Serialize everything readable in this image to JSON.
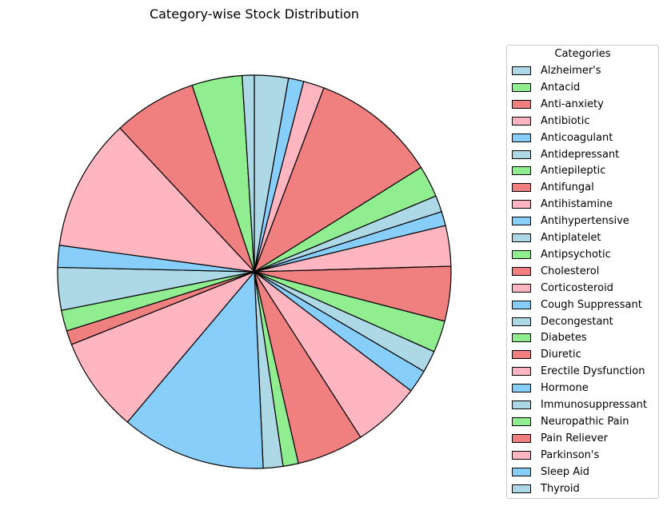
{
  "chart_data": {
    "type": "pie",
    "title": "Category-wise Stock Distribution",
    "legend_title": "Categories",
    "legend_position": "right",
    "categories": [
      "Alzheimer's",
      "Antacid",
      "Anti-anxiety",
      "Antibiotic",
      "Anticoagulant",
      "Antidepressant",
      "Antiepileptic",
      "Antifungal",
      "Antihistamine",
      "Antihypertensive",
      "Antiplatelet",
      "Antipsychotic",
      "Cholesterol",
      "Corticosteroid",
      "Cough Suppressant",
      "Decongestant",
      "Diabetes",
      "Diuretic",
      "Erectile Dysfunction",
      "Hormone",
      "Immunosuppressant",
      "Neuropathic Pain",
      "Pain Reliever",
      "Parkinson's",
      "Sleep Aid",
      "Thyroid"
    ],
    "colors": [
      "#add8e6",
      "#90ee90",
      "#f08080",
      "#ffb6c1",
      "#87cefa"
    ],
    "start_angle": 90,
    "direction": "clockwise",
    "slices": [
      {
        "label": "Alzheimer's",
        "color": "#add8e6",
        "value": 3.1
      },
      {
        "label": "Anticoagulant",
        "color": "#87cefa",
        "value": 1.4
      },
      {
        "label": "Antibiotic",
        "color": "#ffb6c1",
        "value": 1.9
      },
      {
        "label": "Anti-anxiety",
        "color": "#f08080",
        "value": 11.5
      },
      {
        "label": "Antacid",
        "color": "#90ee90",
        "value": 2.9
      },
      {
        "label": "Alzheimer's",
        "color": "#add8e6",
        "value": 1.5
      },
      {
        "label": "Anticoagulant",
        "color": "#87cefa",
        "value": 1.3
      },
      {
        "label": "Antibiotic",
        "color": "#ffb6c1",
        "value": 3.7
      },
      {
        "label": "Anti-anxiety",
        "color": "#f08080",
        "value": 5.0
      },
      {
        "label": "Antacid",
        "color": "#90ee90",
        "value": 2.9
      },
      {
        "label": "Alzheimer's",
        "color": "#add8e6",
        "value": 2.0
      },
      {
        "label": "Anticoagulant",
        "color": "#87cefa",
        "value": 2.1
      },
      {
        "label": "Antibiotic",
        "color": "#ffb6c1",
        "value": 6.2
      },
      {
        "label": "Anti-anxiety",
        "color": "#f08080",
        "value": 6.1
      },
      {
        "label": "Antacid",
        "color": "#90ee90",
        "value": 1.4
      },
      {
        "label": "Alzheimer's",
        "color": "#add8e6",
        "value": 1.8
      },
      {
        "label": "Anticoagulant",
        "color": "#87cefa",
        "value": 13.2
      },
      {
        "label": "Antibiotic",
        "color": "#ffb6c1",
        "value": 8.7
      },
      {
        "label": "Anti-anxiety",
        "color": "#f08080",
        "value": 1.3
      },
      {
        "label": "Antacid",
        "color": "#90ee90",
        "value": 1.9
      },
      {
        "label": "Alzheimer's",
        "color": "#add8e6",
        "value": 3.9
      },
      {
        "label": "Anticoagulant",
        "color": "#87cefa",
        "value": 2.0
      },
      {
        "label": "Antibiotic",
        "color": "#ffb6c1",
        "value": 12.1
      },
      {
        "label": "Anti-anxiety",
        "color": "#f08080",
        "value": 7.6
      },
      {
        "label": "Antacid",
        "color": "#90ee90",
        "value": 4.6
      },
      {
        "label": "Alzheimer's",
        "color": "#add8e6",
        "value": 1.1
      }
    ]
  }
}
